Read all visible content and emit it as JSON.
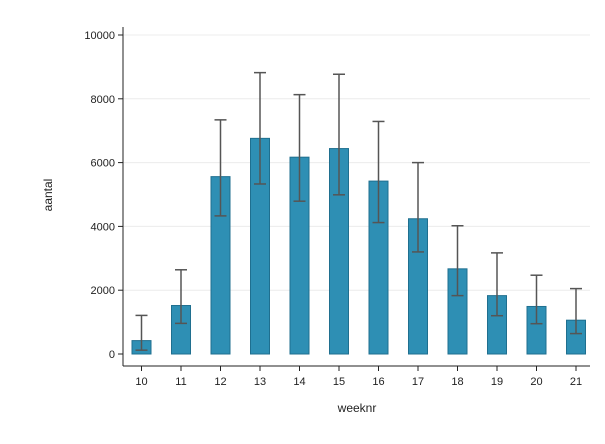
{
  "chart_data": {
    "type": "bar",
    "xlabel": "weeknr",
    "ylabel": "aantal",
    "categories": [
      "10",
      "11",
      "12",
      "13",
      "14",
      "15",
      "16",
      "17",
      "18",
      "19",
      "20",
      "21"
    ],
    "values": [
      420,
      1520,
      5560,
      6760,
      6170,
      6440,
      5420,
      4240,
      2670,
      1830,
      1490,
      1060
    ],
    "error_low": [
      120,
      960,
      4330,
      5330,
      4790,
      4990,
      4120,
      3200,
      1830,
      1200,
      950,
      640
    ],
    "error_high": [
      1210,
      2640,
      7340,
      8820,
      8130,
      8770,
      7290,
      6000,
      4020,
      3170,
      2470,
      2050
    ],
    "ylim": [
      0,
      10000
    ],
    "yticks": [
      0,
      2000,
      4000,
      6000,
      8000,
      10000
    ],
    "grid": true,
    "bar_color": "#2e8fb4",
    "bar_edge_color": "#1f6f8f",
    "error_bar_color": "#555555"
  }
}
